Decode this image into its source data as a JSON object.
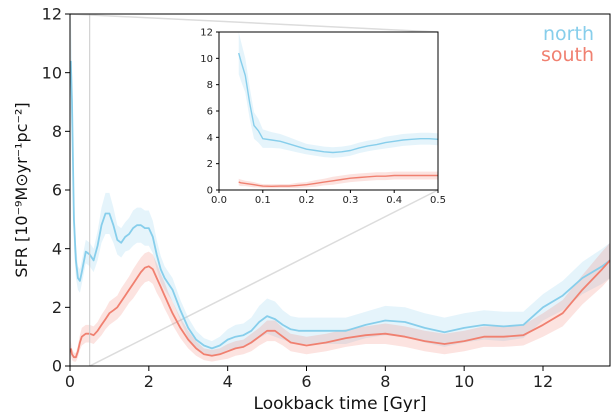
{
  "chart_data": [
    {
      "type": "line",
      "title": "",
      "xlabel": "Lookback time [Gyr]",
      "ylabel": "SFR [10⁻⁹M⊙yr⁻¹pc⁻²]",
      "xlim": [
        0,
        13.7
      ],
      "ylim": [
        0,
        12
      ],
      "xticks": [
        0,
        2,
        4,
        6,
        8,
        10,
        12
      ],
      "yticks": [
        0,
        2,
        4,
        6,
        8,
        10,
        12
      ],
      "grid": false,
      "legend_position": "top-right",
      "marker_line_x": 0.5,
      "series": [
        {
          "name": "north",
          "color": "#87ceeb",
          "x": [
            0.02,
            0.05,
            0.1,
            0.15,
            0.2,
            0.25,
            0.3,
            0.4,
            0.5,
            0.6,
            0.7,
            0.8,
            0.9,
            1.0,
            1.1,
            1.2,
            1.3,
            1.4,
            1.5,
            1.6,
            1.7,
            1.8,
            1.9,
            2.0,
            2.1,
            2.2,
            2.3,
            2.4,
            2.5,
            2.6,
            2.8,
            3.0,
            3.2,
            3.4,
            3.6,
            3.8,
            4.0,
            4.2,
            4.4,
            4.6,
            4.8,
            5.0,
            5.2,
            5.4,
            5.6,
            5.8,
            6.0,
            6.5,
            7.0,
            7.5,
            8.0,
            8.5,
            9.0,
            9.5,
            10.0,
            10.5,
            11.0,
            11.5,
            12.0,
            12.5,
            13.0,
            13.5,
            13.7
          ],
          "y": [
            10.4,
            9.0,
            5.0,
            3.6,
            3.0,
            2.9,
            3.2,
            3.9,
            3.8,
            3.6,
            4.1,
            4.8,
            5.2,
            5.2,
            4.8,
            4.3,
            4.2,
            4.4,
            4.5,
            4.7,
            4.8,
            4.8,
            4.7,
            4.7,
            4.4,
            3.8,
            3.3,
            3.0,
            2.8,
            2.6,
            1.9,
            1.3,
            0.9,
            0.7,
            0.6,
            0.7,
            0.9,
            1.0,
            1.05,
            1.2,
            1.5,
            1.7,
            1.6,
            1.4,
            1.25,
            1.2,
            1.2,
            1.2,
            1.2,
            1.4,
            1.55,
            1.5,
            1.3,
            1.15,
            1.3,
            1.4,
            1.35,
            1.4,
            2.0,
            2.4,
            3.0,
            3.4,
            3.6
          ],
          "band_halfwidth": [
            1.6,
            1.4,
            1.0,
            0.6,
            0.4,
            0.4,
            0.4,
            0.4,
            0.4,
            0.4,
            0.5,
            0.6,
            0.7,
            0.7,
            0.6,
            0.5,
            0.5,
            0.5,
            0.55,
            0.6,
            0.6,
            0.6,
            0.6,
            0.6,
            0.55,
            0.5,
            0.45,
            0.4,
            0.4,
            0.4,
            0.35,
            0.35,
            0.3,
            0.25,
            0.25,
            0.3,
            0.35,
            0.4,
            0.4,
            0.45,
            0.55,
            0.6,
            0.6,
            0.5,
            0.45,
            0.45,
            0.45,
            0.45,
            0.45,
            0.45,
            0.5,
            0.5,
            0.5,
            0.5,
            0.5,
            0.5,
            0.5,
            0.45,
            0.45,
            0.5,
            0.55,
            0.6,
            0.6
          ]
        },
        {
          "name": "south",
          "color": "#f08070",
          "x": [
            0.02,
            0.05,
            0.1,
            0.15,
            0.2,
            0.25,
            0.3,
            0.4,
            0.5,
            0.6,
            0.7,
            0.8,
            0.9,
            1.0,
            1.1,
            1.2,
            1.3,
            1.4,
            1.5,
            1.6,
            1.7,
            1.8,
            1.9,
            2.0,
            2.1,
            2.2,
            2.3,
            2.4,
            2.5,
            2.6,
            2.8,
            3.0,
            3.2,
            3.4,
            3.6,
            3.8,
            4.0,
            4.2,
            4.4,
            4.6,
            4.8,
            5.0,
            5.2,
            5.4,
            5.6,
            5.8,
            6.0,
            6.5,
            7.0,
            7.5,
            8.0,
            8.5,
            9.0,
            9.5,
            10.0,
            10.5,
            11.0,
            11.5,
            12.0,
            12.5,
            13.0,
            13.5,
            13.7
          ],
          "y": [
            0.6,
            0.4,
            0.3,
            0.3,
            0.5,
            0.8,
            1.0,
            1.1,
            1.1,
            1.05,
            1.2,
            1.4,
            1.6,
            1.8,
            1.9,
            2.0,
            2.2,
            2.4,
            2.6,
            2.8,
            3.0,
            3.2,
            3.35,
            3.4,
            3.3,
            3.0,
            2.7,
            2.4,
            2.1,
            1.8,
            1.3,
            0.9,
            0.6,
            0.4,
            0.35,
            0.4,
            0.5,
            0.6,
            0.65,
            0.8,
            1.0,
            1.2,
            1.2,
            1.0,
            0.8,
            0.75,
            0.7,
            0.8,
            0.95,
            1.05,
            1.1,
            1.0,
            0.85,
            0.75,
            0.85,
            1.0,
            1.0,
            1.05,
            1.4,
            1.8,
            2.6,
            3.3,
            3.6
          ],
          "band_halfwidth": [
            0.25,
            0.2,
            0.15,
            0.15,
            0.2,
            0.25,
            0.3,
            0.3,
            0.3,
            0.3,
            0.3,
            0.35,
            0.35,
            0.4,
            0.4,
            0.4,
            0.45,
            0.45,
            0.45,
            0.5,
            0.5,
            0.5,
            0.5,
            0.5,
            0.5,
            0.5,
            0.45,
            0.45,
            0.4,
            0.4,
            0.35,
            0.3,
            0.25,
            0.2,
            0.2,
            0.2,
            0.25,
            0.25,
            0.25,
            0.3,
            0.3,
            0.35,
            0.35,
            0.3,
            0.3,
            0.3,
            0.3,
            0.3,
            0.3,
            0.3,
            0.35,
            0.35,
            0.35,
            0.35,
            0.35,
            0.35,
            0.35,
            0.35,
            0.4,
            0.45,
            0.5,
            0.6,
            0.6
          ]
        }
      ]
    },
    {
      "type": "line",
      "title": "",
      "xlabel": "",
      "ylabel": "",
      "xlim": [
        0.0,
        0.5
      ],
      "ylim": [
        0,
        12
      ],
      "xticks": [
        0.0,
        0.1,
        0.2,
        0.3,
        0.4,
        0.5
      ],
      "yticks": [
        0,
        2,
        4,
        6,
        8,
        10,
        12
      ],
      "grid": false,
      "series": [
        {
          "name": "north",
          "color": "#87ceeb",
          "x": [
            0.045,
            0.05,
            0.06,
            0.07,
            0.08,
            0.09,
            0.1,
            0.12,
            0.14,
            0.16,
            0.18,
            0.2,
            0.22,
            0.24,
            0.26,
            0.28,
            0.3,
            0.32,
            0.34,
            0.36,
            0.38,
            0.4,
            0.42,
            0.44,
            0.46,
            0.48,
            0.5
          ],
          "y": [
            10.4,
            9.8,
            8.7,
            6.6,
            4.9,
            4.5,
            3.9,
            3.8,
            3.7,
            3.5,
            3.3,
            3.1,
            3.0,
            2.9,
            2.85,
            2.9,
            3.0,
            3.2,
            3.35,
            3.45,
            3.6,
            3.7,
            3.8,
            3.85,
            3.9,
            3.9,
            3.85
          ],
          "band_halfwidth": [
            1.6,
            1.5,
            1.3,
            1.2,
            1.0,
            0.9,
            0.7,
            0.6,
            0.55,
            0.5,
            0.45,
            0.4,
            0.4,
            0.4,
            0.4,
            0.4,
            0.4,
            0.4,
            0.4,
            0.4,
            0.45,
            0.45,
            0.45,
            0.45,
            0.45,
            0.45,
            0.45
          ]
        },
        {
          "name": "south",
          "color": "#f08070",
          "x": [
            0.045,
            0.05,
            0.06,
            0.07,
            0.08,
            0.09,
            0.1,
            0.12,
            0.14,
            0.16,
            0.18,
            0.2,
            0.22,
            0.24,
            0.26,
            0.28,
            0.3,
            0.32,
            0.34,
            0.36,
            0.38,
            0.4,
            0.42,
            0.44,
            0.46,
            0.48,
            0.5
          ],
          "y": [
            0.6,
            0.55,
            0.5,
            0.45,
            0.4,
            0.35,
            0.3,
            0.28,
            0.3,
            0.3,
            0.35,
            0.4,
            0.5,
            0.6,
            0.7,
            0.8,
            0.9,
            0.95,
            1.0,
            1.05,
            1.05,
            1.1,
            1.1,
            1.1,
            1.1,
            1.1,
            1.1
          ],
          "band_halfwidth": [
            0.25,
            0.25,
            0.2,
            0.2,
            0.2,
            0.15,
            0.15,
            0.15,
            0.15,
            0.15,
            0.2,
            0.2,
            0.25,
            0.25,
            0.3,
            0.3,
            0.3,
            0.3,
            0.3,
            0.3,
            0.3,
            0.3,
            0.3,
            0.3,
            0.3,
            0.3,
            0.3
          ]
        }
      ]
    }
  ],
  "legend": {
    "north_label": "north",
    "south_label": "south"
  }
}
